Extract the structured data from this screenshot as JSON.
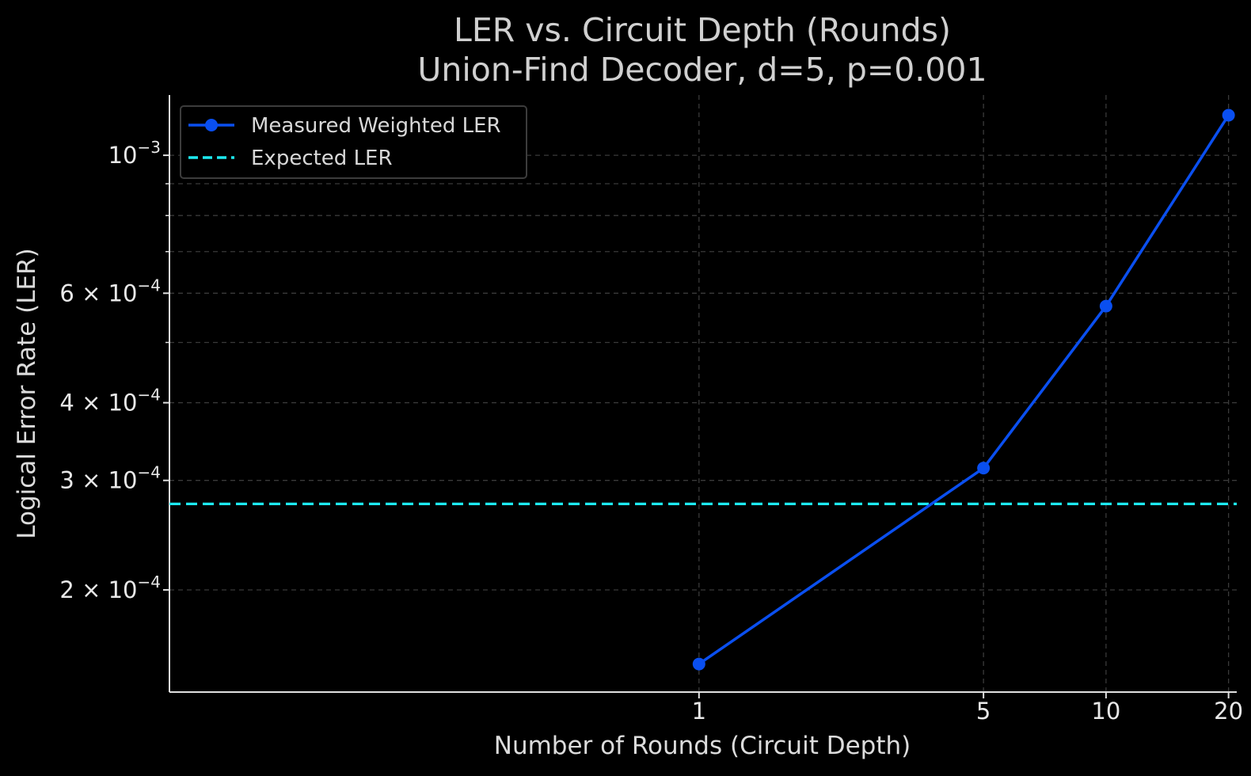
{
  "chart_data": {
    "type": "line",
    "title": "LER vs. Circuit Depth (Rounds)",
    "subtitle": "Union-Find Decoder, d=5, p=0.001",
    "xlabel": "Number of Rounds (Circuit Depth)",
    "ylabel": "Logical Error Rate (LER)",
    "x": [
      1,
      5,
      10,
      20
    ],
    "x_ticks": [
      "1",
      "5",
      "10",
      "20"
    ],
    "xlim": [
      0.05,
      20.95
    ],
    "y_scale": "log",
    "ylim": [
      0.000137,
      0.00125
    ],
    "y_ticks": [
      {
        "value": 0.001,
        "mantissa": "",
        "exponent": "−3"
      },
      {
        "value": 0.0006,
        "mantissa": "6 × ",
        "exponent": "−4"
      },
      {
        "value": 0.0004,
        "mantissa": "4 × ",
        "exponent": "−4"
      },
      {
        "value": 0.0003,
        "mantissa": "3 × ",
        "exponent": "−4"
      },
      {
        "value": 0.0002,
        "mantissa": "2 × ",
        "exponent": "−4"
      }
    ],
    "y_minor_grid": [
      0.0009,
      0.0008,
      0.0007,
      0.0005
    ],
    "grid": true,
    "legend_position": "top-left",
    "series": [
      {
        "name": "Measured Weighted LER",
        "values": [
          0.000152,
          0.000314,
          0.000572,
          0.00116
        ],
        "color": "#0a4ff0",
        "style": "solid",
        "marker": "circle"
      },
      {
        "name": "Expected LER",
        "constant": 0.000275,
        "color": "#1de9f0",
        "style": "dashed"
      }
    ]
  }
}
